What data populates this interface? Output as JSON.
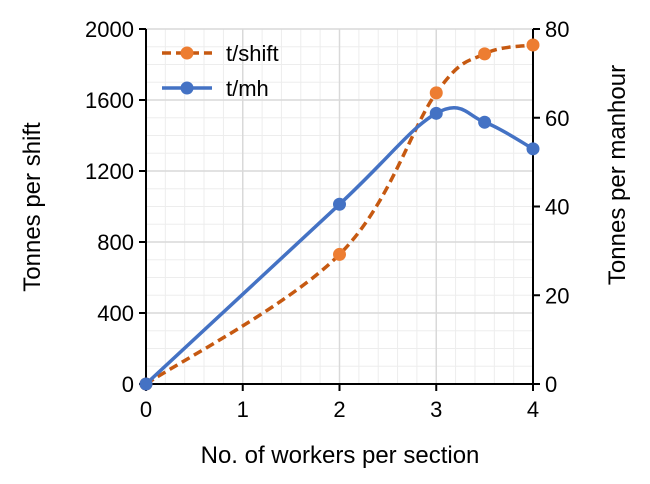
{
  "chart_data": {
    "type": "line",
    "xlabel": "No. of workers per section",
    "ylabel": "Tonnes per shift",
    "y2label": "Tonnes per manhour",
    "xlim": [
      0,
      4
    ],
    "ylim": [
      0,
      2000
    ],
    "y2lim": [
      0,
      80
    ],
    "xticks": [
      "0",
      "1",
      "2",
      "3",
      "4"
    ],
    "yticks": [
      "0",
      "400",
      "800",
      "1200",
      "1600",
      "2000"
    ],
    "y2ticks": [
      "0",
      "20",
      "40",
      "60",
      "80"
    ],
    "grid": true,
    "legend_position": "top-left",
    "series": [
      {
        "name": "t/shift",
        "axis": "left",
        "color": "#C65911",
        "marker_color": "#ED7D31",
        "line_style": "dashed",
        "x": [
          0,
          2,
          3,
          3.5,
          4
        ],
        "y": [
          0,
          730,
          1640,
          1860,
          1910
        ]
      },
      {
        "name": "t/mh",
        "axis": "right",
        "color": "#4472C4",
        "marker_color": "#4472C4",
        "line_style": "solid",
        "x": [
          0,
          2,
          3,
          3.5,
          4
        ],
        "y": [
          0,
          40.5,
          61,
          59,
          53
        ]
      }
    ]
  }
}
